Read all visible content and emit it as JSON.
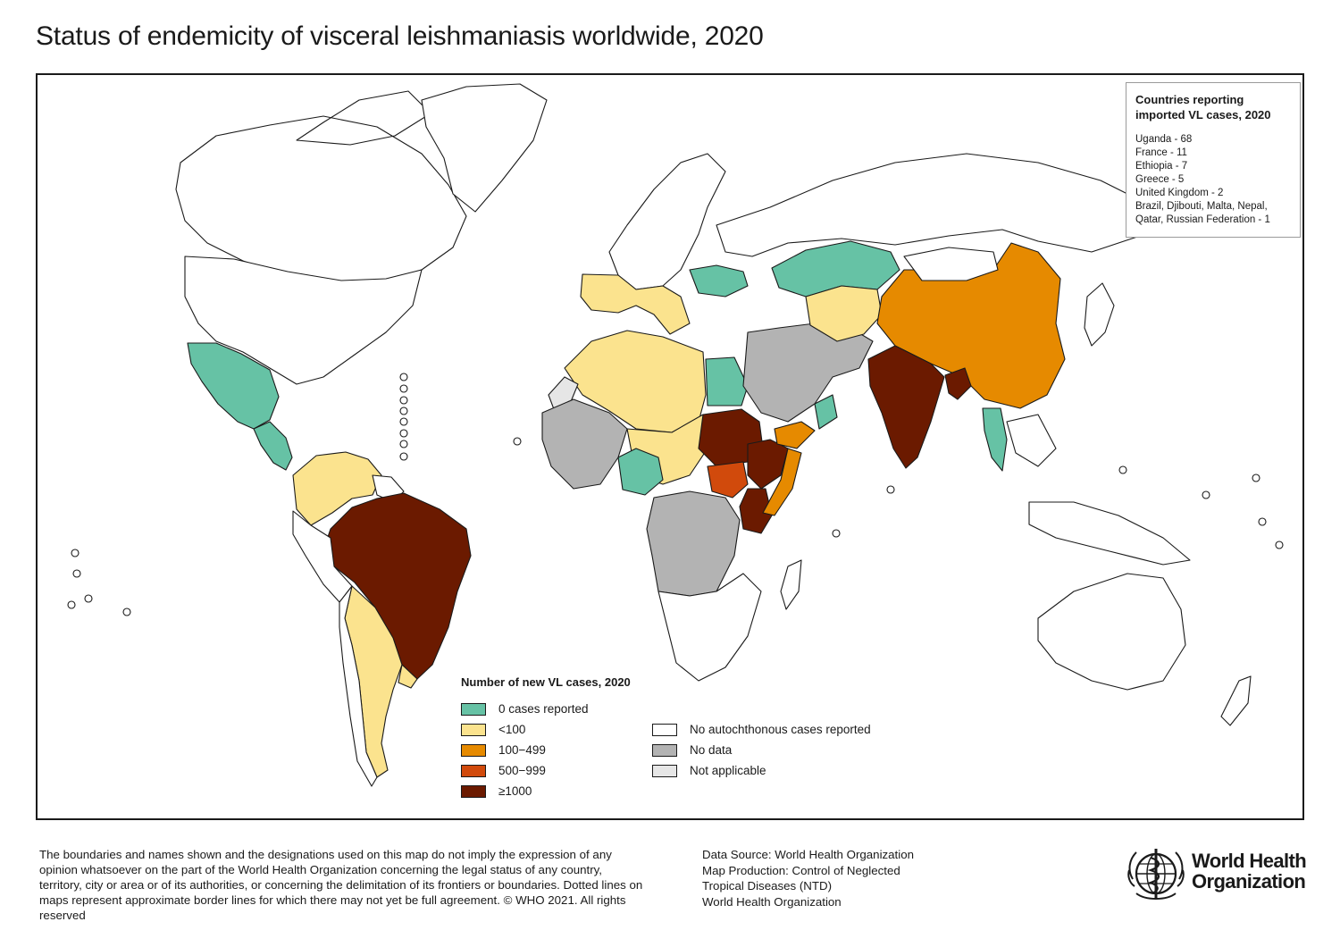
{
  "title": "Status of endemicity of visceral leishmaniasis worldwide, 2020",
  "imported_box": {
    "title": "Countries reporting\nimported VL cases, 2020",
    "items": [
      "Uganda - 68",
      "France - 11",
      "Ethiopia - 7",
      "Greece - 5",
      "United Kingdom - 2",
      "Brazil, Djibouti, Malta, Nepal,",
      "Qatar, Russian Federation - 1"
    ]
  },
  "legend": {
    "title": "Number of new VL cases, 2020",
    "categories": [
      {
        "label": "0 cases reported",
        "color": "#66c2a5"
      },
      {
        "label": "<100",
        "color": "#fbe38e"
      },
      {
        "label": "100−499",
        "color": "#e68a00"
      },
      {
        "label": "500−999",
        "color": "#d14a0c"
      },
      {
        "label": "≥1000",
        "color": "#6b1a00"
      }
    ],
    "other": [
      {
        "label": "No autochthonous cases reported",
        "color": "#ffffff"
      },
      {
        "label": "No data",
        "color": "#b3b3b3"
      },
      {
        "label": "Not applicable",
        "color": "#e6e6e6"
      }
    ]
  },
  "map": {
    "regions": [
      {
        "name": "Canada",
        "category": "No autochthonous cases reported"
      },
      {
        "name": "Greenland",
        "category": "No autochthonous cases reported"
      },
      {
        "name": "United States",
        "category": "No autochthonous cases reported"
      },
      {
        "name": "Mexico",
        "category": "0 cases reported"
      },
      {
        "name": "Central America",
        "category": "0 cases reported"
      },
      {
        "name": "Venezuela / Colombia",
        "category": "<100"
      },
      {
        "name": "Guianas",
        "category": "No autochthonous cases reported"
      },
      {
        "name": "Brazil",
        "category": "≥1000"
      },
      {
        "name": "Bolivia / Paraguay / Argentina",
        "category": "<100"
      },
      {
        "name": "Uruguay",
        "category": "<100"
      },
      {
        "name": "Peru / Ecuador",
        "category": "No autochthonous cases reported"
      },
      {
        "name": "Chile",
        "category": "No autochthonous cases reported"
      },
      {
        "name": "Northern Europe",
        "category": "No autochthonous cases reported"
      },
      {
        "name": "France / Spain / Italy",
        "category": "<100"
      },
      {
        "name": "Ukraine",
        "category": "0 cases reported"
      },
      {
        "name": "Russian Federation",
        "category": "No autochthonous cases reported"
      },
      {
        "name": "Morocco / Algeria / Tunisia / Libya",
        "category": "<100"
      },
      {
        "name": "Western Sahara",
        "category": "Not applicable"
      },
      {
        "name": "Egypt",
        "category": "0 cases reported"
      },
      {
        "name": "West Africa",
        "category": "No data"
      },
      {
        "name": "Niger / Chad",
        "category": "<100"
      },
      {
        "name": "Nigeria",
        "category": "0 cases reported"
      },
      {
        "name": "Sudan",
        "category": "≥1000"
      },
      {
        "name": "South Sudan",
        "category": "500−999"
      },
      {
        "name": "Ethiopia",
        "category": "≥1000"
      },
      {
        "name": "Kenya",
        "category": "≥1000"
      },
      {
        "name": "Somalia",
        "category": "100−499"
      },
      {
        "name": "Central Africa",
        "category": "No data"
      },
      {
        "name": "Southern Africa",
        "category": "No autochthonous cases reported"
      },
      {
        "name": "Madagascar",
        "category": "No autochthonous cases reported"
      },
      {
        "name": "Saudi Arabia / Iran / Iraq",
        "category": "No data"
      },
      {
        "name": "Yemen",
        "category": "100−499"
      },
      {
        "name": "Oman",
        "category": "0 cases reported"
      },
      {
        "name": "Kazakhstan",
        "category": "0 cases reported"
      },
      {
        "name": "Central Asia",
        "category": "<100"
      },
      {
        "name": "China",
        "category": "100−499"
      },
      {
        "name": "Mongolia",
        "category": "No autochthonous cases reported"
      },
      {
        "name": "India",
        "category": "≥1000"
      },
      {
        "name": "Bangladesh",
        "category": "≥1000"
      },
      {
        "name": "Thailand",
        "category": "0 cases reported"
      },
      {
        "name": "Southeast Asia",
        "category": "No autochthonous cases reported"
      },
      {
        "name": "Japan",
        "category": "No autochthonous cases reported"
      },
      {
        "name": "Australia",
        "category": "No autochthonous cases reported"
      },
      {
        "name": "New Zealand",
        "category": "No autochthonous cases reported"
      }
    ]
  },
  "disclaimer": "The boundaries and names shown and the designations used on this map do not imply the expression of any opinion whatsoever on the part of the World Health Organization concerning the legal status of any country, territory, city or area or of its authorities, or concerning the delimitation of its frontiers or boundaries. Dotted lines on maps represent approximate border lines for which there may not yet be full agreement. © WHO 2021. All rights reserved",
  "source": [
    "Data Source: World Health Organization",
    "Map Production: Control of Neglected",
    "Tropical Diseases (NTD)",
    "World Health Organization"
  ],
  "logo": {
    "line1": "World Health",
    "line2": "Organization",
    "icon": "who-emblem-icon"
  }
}
